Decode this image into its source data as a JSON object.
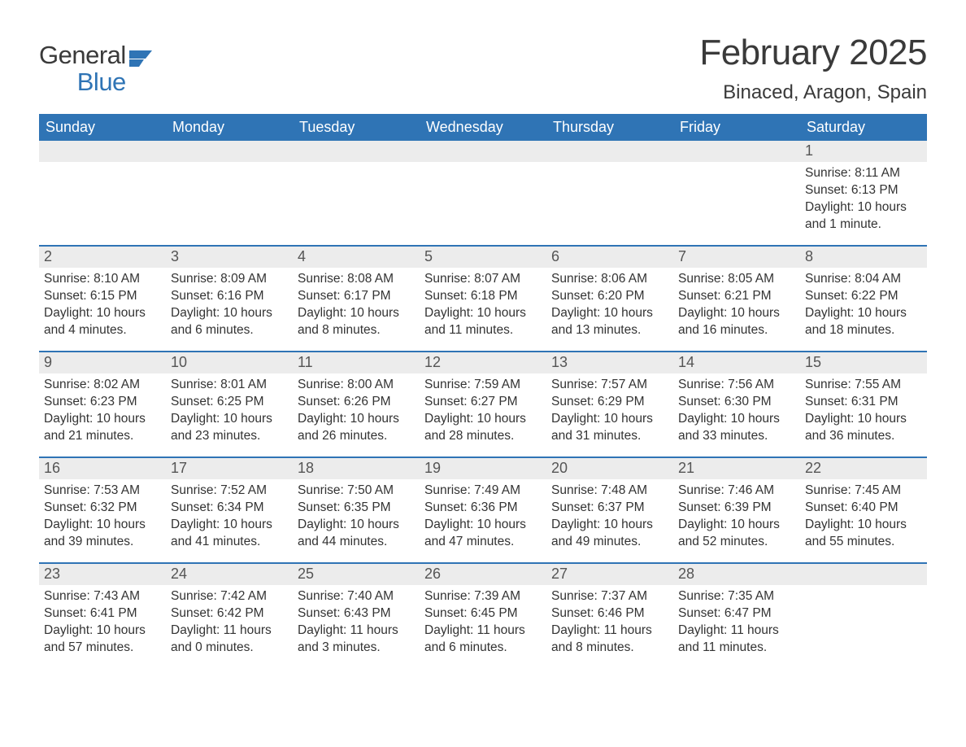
{
  "brand": {
    "word1": "General",
    "word2": "Blue",
    "flag_color": "#2f74b5"
  },
  "header": {
    "month_title": "February 2025",
    "location": "Binaced, Aragon, Spain"
  },
  "colors": {
    "header_bg": "#2f74b5",
    "header_text": "#ffffff",
    "daynum_bg": "#ececec",
    "body_bg": "#ffffff",
    "text": "#333333",
    "week_divider": "#2f74b5"
  },
  "typography": {
    "title_fontsize_pt": 33,
    "location_fontsize_pt": 18,
    "dayheader_fontsize_pt": 14,
    "daynum_fontsize_pt": 14,
    "body_fontsize_pt": 12,
    "font_family": "Arial"
  },
  "calendar": {
    "day_names": [
      "Sunday",
      "Monday",
      "Tuesday",
      "Wednesday",
      "Thursday",
      "Friday",
      "Saturday"
    ],
    "labels": {
      "sunrise": "Sunrise:",
      "sunset": "Sunset:",
      "daylight": "Daylight:"
    },
    "weeks": [
      [
        null,
        null,
        null,
        null,
        null,
        null,
        {
          "n": "1",
          "sunrise": "8:11 AM",
          "sunset": "6:13 PM",
          "dl": "10 hours and 1 minute."
        }
      ],
      [
        {
          "n": "2",
          "sunrise": "8:10 AM",
          "sunset": "6:15 PM",
          "dl": "10 hours and 4 minutes."
        },
        {
          "n": "3",
          "sunrise": "8:09 AM",
          "sunset": "6:16 PM",
          "dl": "10 hours and 6 minutes."
        },
        {
          "n": "4",
          "sunrise": "8:08 AM",
          "sunset": "6:17 PM",
          "dl": "10 hours and 8 minutes."
        },
        {
          "n": "5",
          "sunrise": "8:07 AM",
          "sunset": "6:18 PM",
          "dl": "10 hours and 11 minutes."
        },
        {
          "n": "6",
          "sunrise": "8:06 AM",
          "sunset": "6:20 PM",
          "dl": "10 hours and 13 minutes."
        },
        {
          "n": "7",
          "sunrise": "8:05 AM",
          "sunset": "6:21 PM",
          "dl": "10 hours and 16 minutes."
        },
        {
          "n": "8",
          "sunrise": "8:04 AM",
          "sunset": "6:22 PM",
          "dl": "10 hours and 18 minutes."
        }
      ],
      [
        {
          "n": "9",
          "sunrise": "8:02 AM",
          "sunset": "6:23 PM",
          "dl": "10 hours and 21 minutes."
        },
        {
          "n": "10",
          "sunrise": "8:01 AM",
          "sunset": "6:25 PM",
          "dl": "10 hours and 23 minutes."
        },
        {
          "n": "11",
          "sunrise": "8:00 AM",
          "sunset": "6:26 PM",
          "dl": "10 hours and 26 minutes."
        },
        {
          "n": "12",
          "sunrise": "7:59 AM",
          "sunset": "6:27 PM",
          "dl": "10 hours and 28 minutes."
        },
        {
          "n": "13",
          "sunrise": "7:57 AM",
          "sunset": "6:29 PM",
          "dl": "10 hours and 31 minutes."
        },
        {
          "n": "14",
          "sunrise": "7:56 AM",
          "sunset": "6:30 PM",
          "dl": "10 hours and 33 minutes."
        },
        {
          "n": "15",
          "sunrise": "7:55 AM",
          "sunset": "6:31 PM",
          "dl": "10 hours and 36 minutes."
        }
      ],
      [
        {
          "n": "16",
          "sunrise": "7:53 AM",
          "sunset": "6:32 PM",
          "dl": "10 hours and 39 minutes."
        },
        {
          "n": "17",
          "sunrise": "7:52 AM",
          "sunset": "6:34 PM",
          "dl": "10 hours and 41 minutes."
        },
        {
          "n": "18",
          "sunrise": "7:50 AM",
          "sunset": "6:35 PM",
          "dl": "10 hours and 44 minutes."
        },
        {
          "n": "19",
          "sunrise": "7:49 AM",
          "sunset": "6:36 PM",
          "dl": "10 hours and 47 minutes."
        },
        {
          "n": "20",
          "sunrise": "7:48 AM",
          "sunset": "6:37 PM",
          "dl": "10 hours and 49 minutes."
        },
        {
          "n": "21",
          "sunrise": "7:46 AM",
          "sunset": "6:39 PM",
          "dl": "10 hours and 52 minutes."
        },
        {
          "n": "22",
          "sunrise": "7:45 AM",
          "sunset": "6:40 PM",
          "dl": "10 hours and 55 minutes."
        }
      ],
      [
        {
          "n": "23",
          "sunrise": "7:43 AM",
          "sunset": "6:41 PM",
          "dl": "10 hours and 57 minutes."
        },
        {
          "n": "24",
          "sunrise": "7:42 AM",
          "sunset": "6:42 PM",
          "dl": "11 hours and 0 minutes."
        },
        {
          "n": "25",
          "sunrise": "7:40 AM",
          "sunset": "6:43 PM",
          "dl": "11 hours and 3 minutes."
        },
        {
          "n": "26",
          "sunrise": "7:39 AM",
          "sunset": "6:45 PM",
          "dl": "11 hours and 6 minutes."
        },
        {
          "n": "27",
          "sunrise": "7:37 AM",
          "sunset": "6:46 PM",
          "dl": "11 hours and 8 minutes."
        },
        {
          "n": "28",
          "sunrise": "7:35 AM",
          "sunset": "6:47 PM",
          "dl": "11 hours and 11 minutes."
        },
        null
      ]
    ]
  }
}
